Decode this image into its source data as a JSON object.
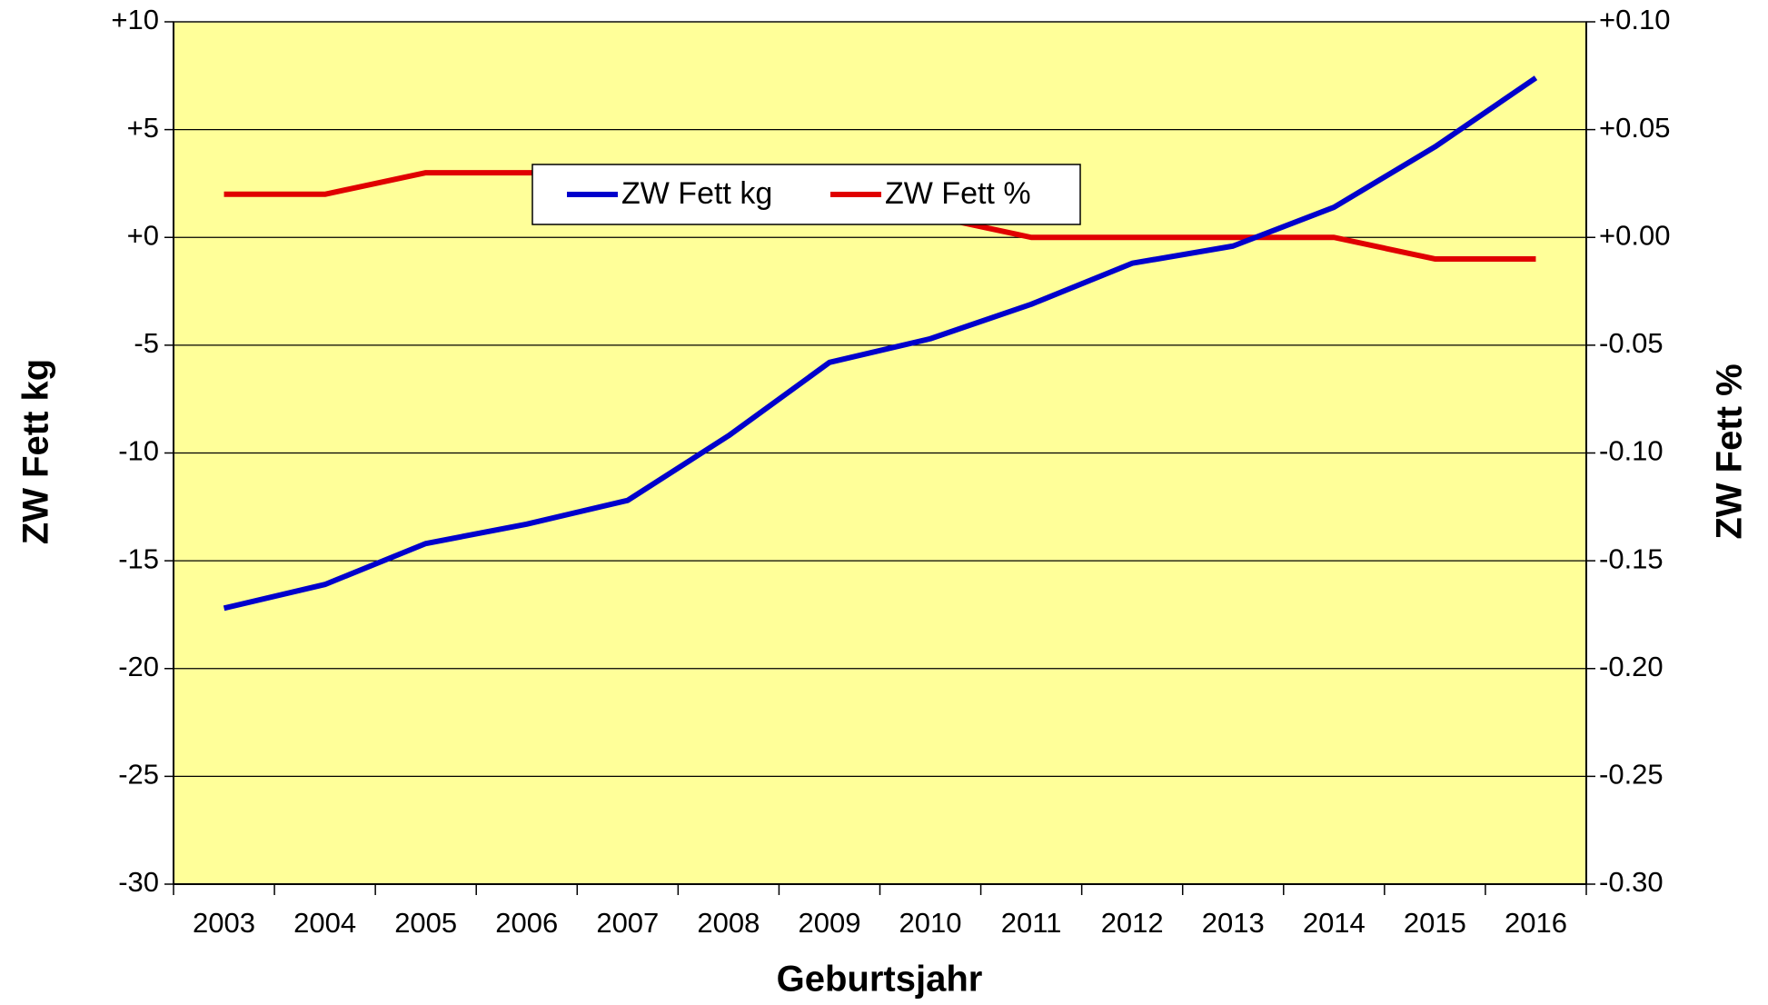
{
  "chart_data": {
    "type": "line",
    "x_label": "Geburtsjahr",
    "y_label": "ZW Fett kg",
    "y2_label": "ZW Fett %",
    "categories": [
      "2003",
      "2004",
      "2005",
      "2006",
      "2007",
      "2008",
      "2009",
      "2010",
      "2011",
      "2012",
      "2013",
      "2014",
      "2015",
      "2016"
    ],
    "series": [
      {
        "name": "ZW Fett kg",
        "color": "#0000cc",
        "values": [
          -17.2,
          -16.1,
          -14.2,
          -13.3,
          -12.2,
          -9.2,
          -5.8,
          -4.7,
          -3.1,
          -1.2,
          -0.4,
          1.4,
          4.2,
          7.4
        ]
      },
      {
        "name": "ZW Fett %",
        "color": "#e00000",
        "axis": "y2",
        "values": [
          0.02,
          0.02,
          0.03,
          0.03,
          0.03,
          0.03,
          0.02,
          0.01,
          0.0,
          0.0,
          0.0,
          0.0,
          -0.01,
          -0.01
        ]
      }
    ],
    "ylim": [
      -30,
      10
    ],
    "yticks": [
      {
        "value": 10,
        "label": "+10"
      },
      {
        "value": 5,
        "label": "+5"
      },
      {
        "value": 0,
        "label": "+0"
      },
      -5,
      -10,
      -15,
      -20,
      -25,
      -30
    ],
    "y2lim": [
      -0.3,
      0.1
    ],
    "y2ticks": [
      {
        "value": 0.1,
        "label": "+0.10"
      },
      {
        "value": 0.05,
        "label": "+0.05"
      },
      {
        "value": 0,
        "label": "+0.00"
      },
      -0.05,
      {
        "value": -0.1,
        "label": "-0.10"
      },
      -0.15,
      {
        "value": -0.2,
        "label": "-0.20"
      },
      -0.25,
      {
        "value": -0.3,
        "label": "-0.30"
      }
    ],
    "grid": true,
    "background": "#ffff99",
    "legend": "top"
  }
}
